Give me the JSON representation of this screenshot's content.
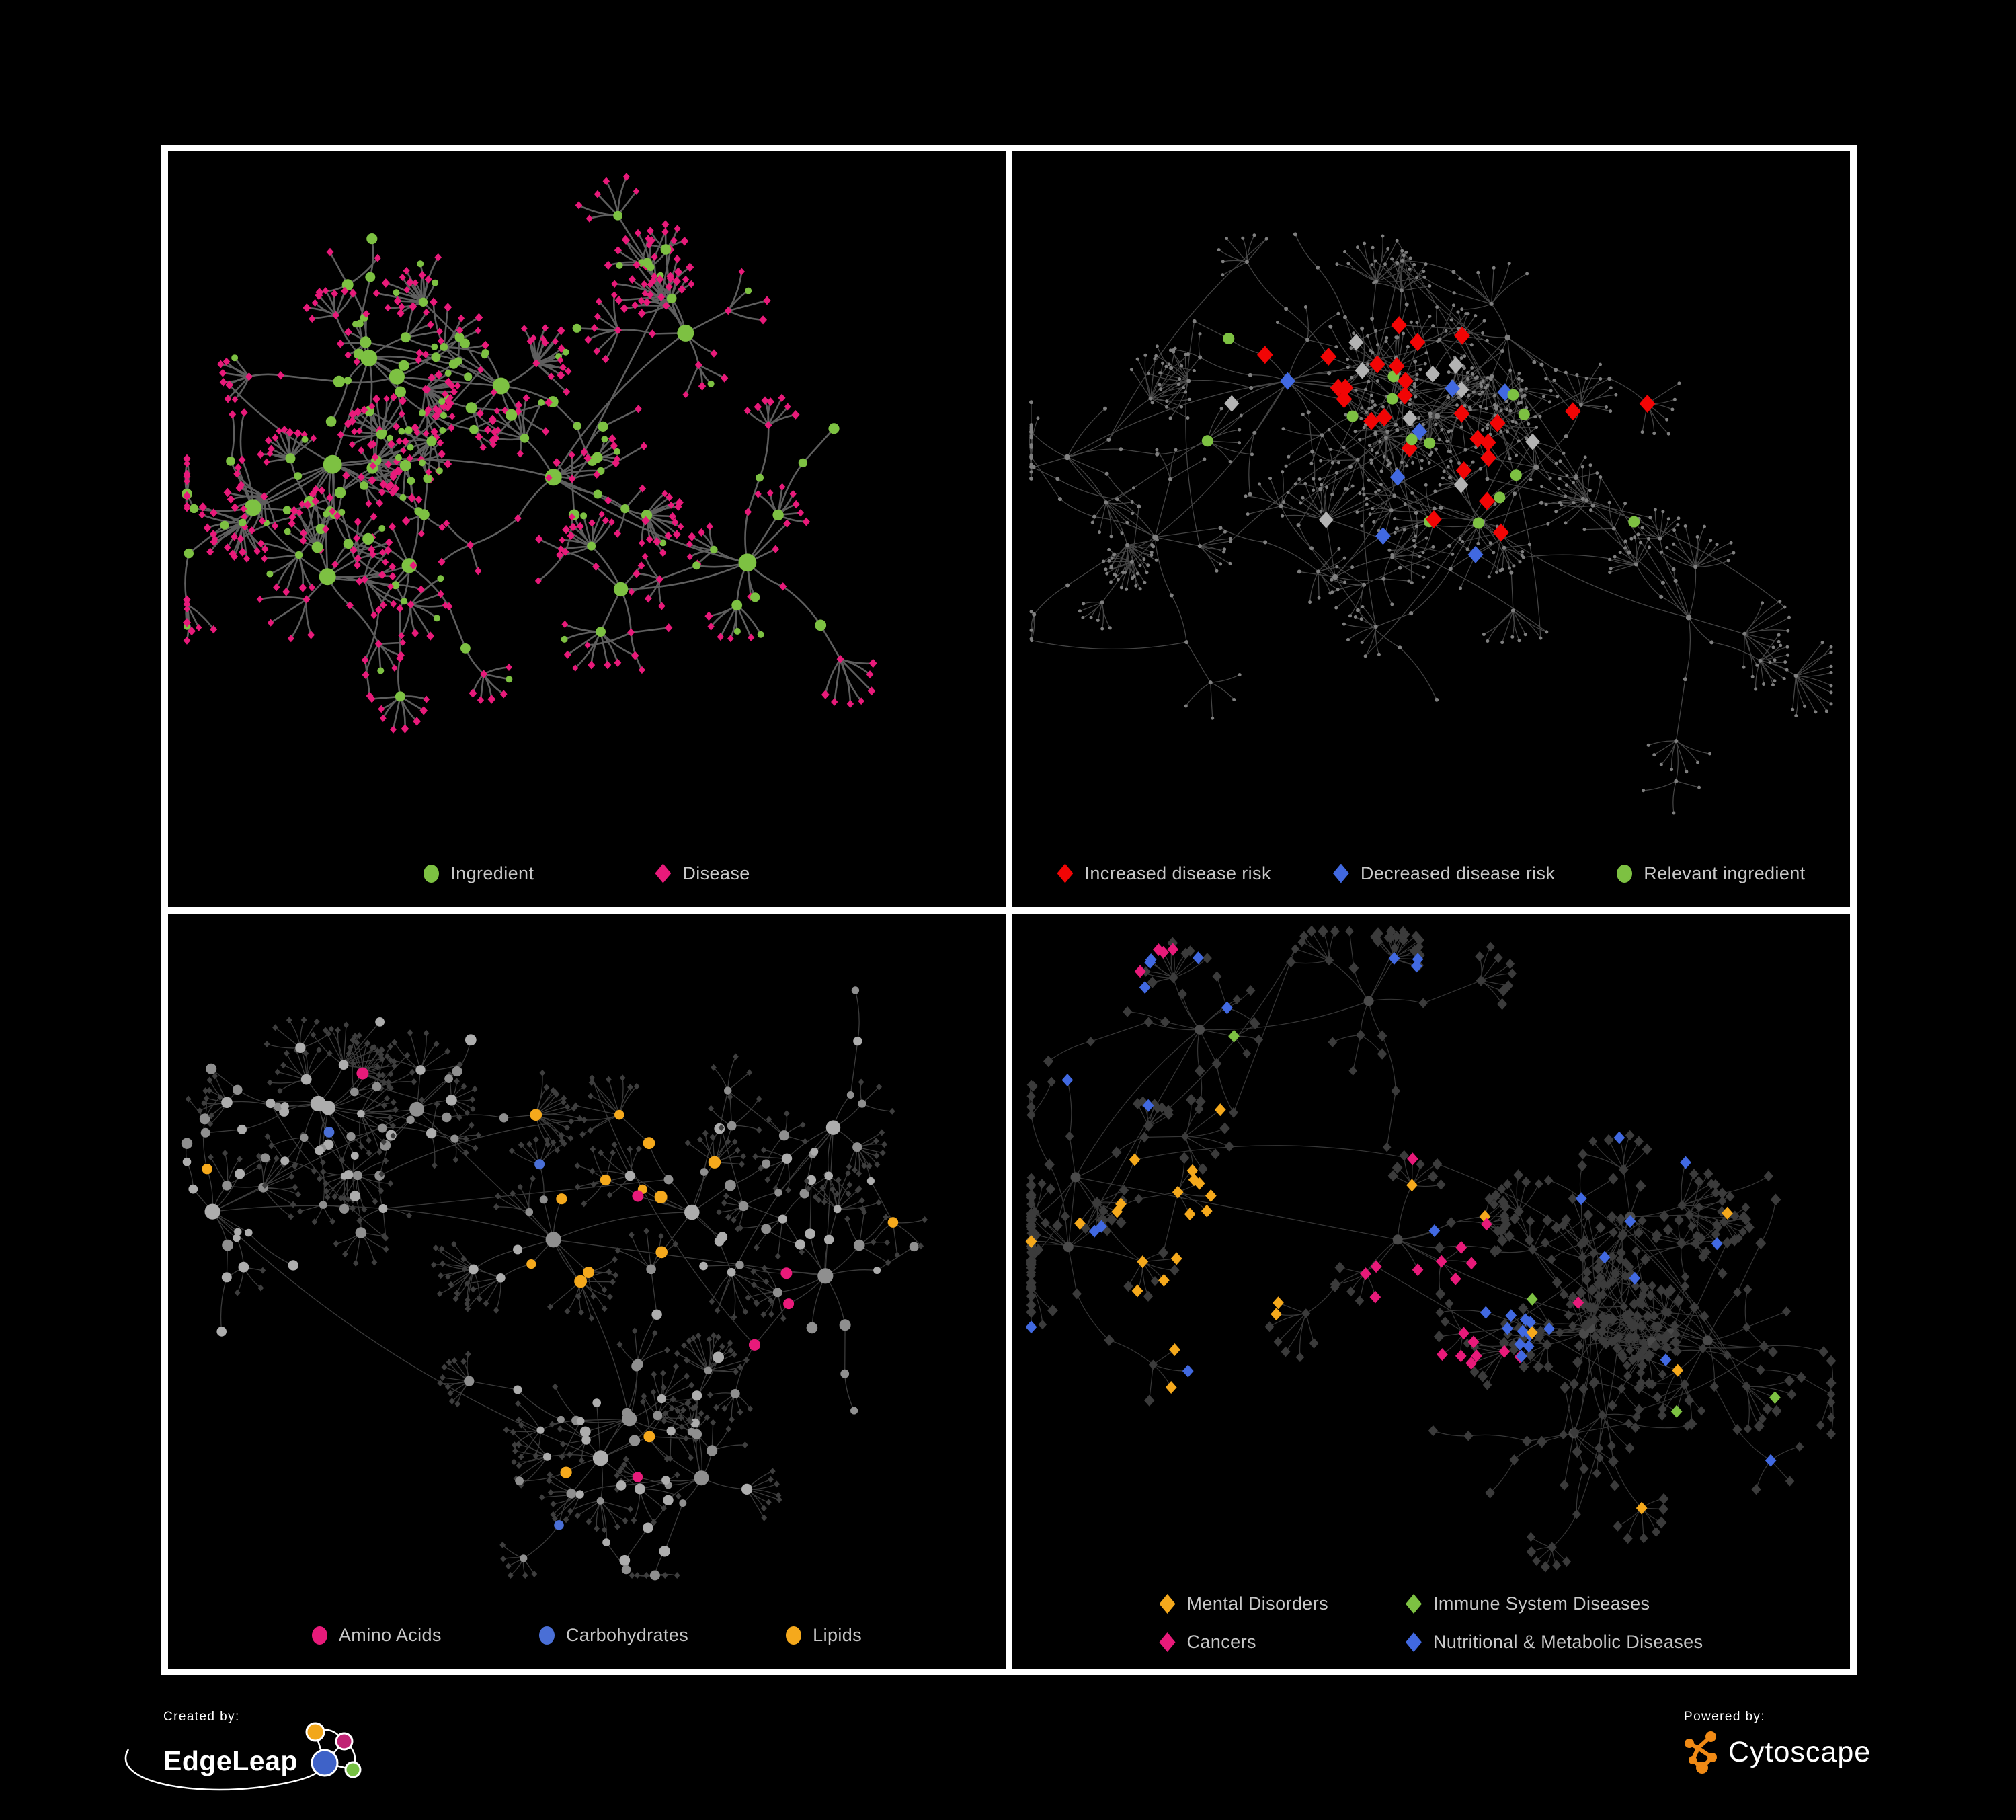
{
  "canvas": {
    "background": "#000000",
    "frame_color": "#FFFFFF"
  },
  "legend_text_color": "#C8C8C8",
  "branding": {
    "created_by_label": "Created by:",
    "created_by_name": "EdgeLeap",
    "powered_by_label": "Powered by:",
    "powered_by_name": "Cytoscape",
    "cytoscape_color": "#F08A15",
    "edgeleap_node_colors": [
      "#F2A71B",
      "#C02374",
      "#3E62C8",
      "#76C043"
    ]
  },
  "panels": [
    {
      "id": "ingredient-disease",
      "position": "top-left",
      "legend": [
        {
          "label": "Ingredient",
          "shape": "circle",
          "color": "#7DC142"
        },
        {
          "label": "Disease",
          "shape": "diamond",
          "color": "#E81A7A"
        }
      ],
      "style": {
        "node_green": "#7DC142",
        "node_pink": "#E81A7A",
        "edge": "#6E6E6E",
        "edge_width": 2.6,
        "edge_opacity": 0.85
      }
    },
    {
      "id": "disease-risk",
      "position": "top-right",
      "legend": [
        {
          "label": "Increased disease risk",
          "shape": "diamond",
          "color": "#F20505"
        },
        {
          "label": "Decreased disease risk",
          "shape": "diamond",
          "color": "#4169E1"
        },
        {
          "label": "Relevant ingredient",
          "shape": "circle",
          "color": "#7DC142"
        }
      ],
      "style": {
        "node_base": "#7F7F7F",
        "hl_red": "#F20505",
        "hl_blue": "#4169E1",
        "hl_silver": "#B3B3B3",
        "hl_green": "#7DC142",
        "edge": "#8A8A8A",
        "edge_width": 1.25,
        "edge_opacity": 0.5
      }
    },
    {
      "id": "nutrient-classes",
      "position": "bottom-left",
      "legend": [
        {
          "label": "Amino Acids",
          "shape": "circle",
          "color": "#E81A7A"
        },
        {
          "label": "Carbohydrates",
          "shape": "circle",
          "color": "#4A6FD6"
        },
        {
          "label": "Lipids",
          "shape": "circle",
          "color": "#F5A91C"
        }
      ],
      "style": {
        "node_gray_a": "#ADADAD",
        "node_gray_b": "#8F8F8F",
        "node_dark": "#3E3E3E",
        "hl_orange": "#F5A91C",
        "hl_blue": "#4A6FD6",
        "hl_pink": "#E81A7A",
        "edge": "#9C9C9C",
        "edge_width": 1.3,
        "edge_opacity": 0.38
      }
    },
    {
      "id": "disease-categories",
      "position": "bottom-right",
      "legend": [
        {
          "label": "Mental Disorders",
          "shape": "diamond",
          "color": "#F5A91C"
        },
        {
          "label": "Immune System Diseases",
          "shape": "diamond",
          "color": "#7DC142"
        },
        {
          "label": "Cancers",
          "shape": "diamond",
          "color": "#E81A7A"
        },
        {
          "label": "Nutritional & Metabolic Diseases",
          "shape": "diamond",
          "color": "#4169E1"
        }
      ],
      "style": {
        "node_dark": "#3B3B3B",
        "node_hub": "#4A4A4A",
        "hl_orange": "#F5A91C",
        "hl_pink": "#E81A7A",
        "hl_blue": "#4169E1",
        "hl_green": "#7DC142",
        "edge": "#A0A0A0",
        "edge_width": 1.2,
        "edge_opacity": 0.34
      }
    }
  ]
}
